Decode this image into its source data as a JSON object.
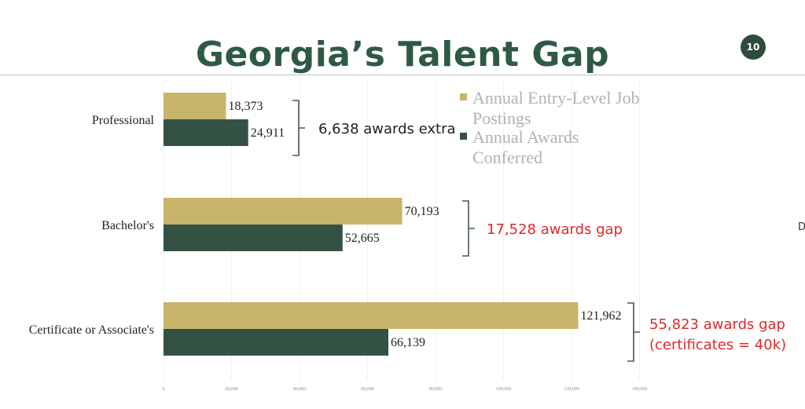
{
  "slide": {
    "title": "Georgia’s Talent Gap",
    "number": "10",
    "edge_glyph": "D"
  },
  "colors": {
    "postings": "#c8b46a",
    "awards": "#345244",
    "gap_text": "#e0282a",
    "extra_text": "#222222",
    "bracket": "#445a4c"
  },
  "chart_data": {
    "type": "bar",
    "orientation": "horizontal",
    "categories": [
      "Professional",
      "Bachelor's",
      "Certificate or Associate's"
    ],
    "series": [
      {
        "name": "Annual Entry-Level Job Postings",
        "values": [
          18373,
          70193,
          121962
        ],
        "labels": [
          "18,373",
          "70,193",
          "121,962"
        ]
      },
      {
        "name": "Annual Awards Conferred",
        "values": [
          24911,
          52665,
          66139
        ],
        "labels": [
          "24,911",
          "52,665",
          "66,139"
        ]
      }
    ],
    "xlim": [
      0,
      140000
    ],
    "xticks": [
      0,
      20000,
      40000,
      60000,
      80000,
      100000,
      120000,
      140000
    ],
    "xtick_labels": [
      "0",
      "20,000",
      "40,000",
      "60,000",
      "80,000",
      "100,000",
      "120,000",
      "140,000"
    ],
    "grid": true,
    "legend_position": "top-right",
    "annotations": [
      {
        "category": "Professional",
        "lines": [
          "6,638 awards extra"
        ],
        "style": "extra"
      },
      {
        "category": "Bachelor's",
        "lines": [
          "17,528 awards gap"
        ],
        "style": "gap"
      },
      {
        "category": "Certificate or Associate's",
        "lines": [
          "55,823 awards gap",
          "(certificates = 40k)"
        ],
        "style": "gap"
      }
    ]
  },
  "legend": [
    {
      "lines": [
        "Annual Entry-Level Job",
        "Postings"
      ],
      "series": "postings"
    },
    {
      "lines": [
        "Annual Awards",
        "Conferred"
      ],
      "series": "awards"
    }
  ]
}
